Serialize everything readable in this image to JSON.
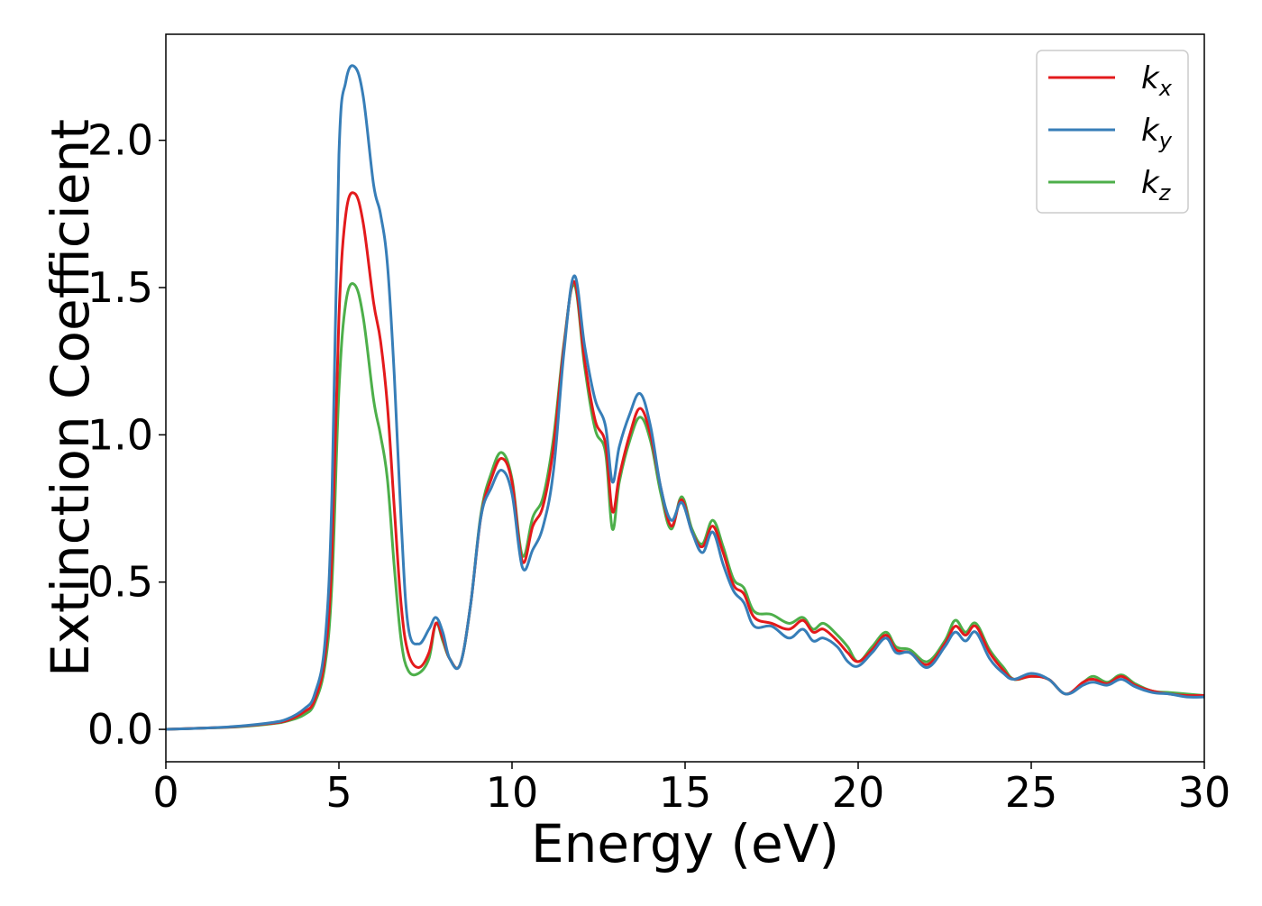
{
  "chart_data": {
    "type": "line",
    "title": "",
    "xlabel": "Energy (eV)",
    "ylabel": "Extinction Coefficient",
    "xlim": [
      0,
      30
    ],
    "ylim": [
      -0.11,
      2.36
    ],
    "grid": false,
    "legend_position": "top-right",
    "x_ticks": [
      0,
      5,
      10,
      15,
      20,
      25,
      30
    ],
    "x_tick_labels": [
      "0",
      "5",
      "10",
      "15",
      "20",
      "25",
      "30"
    ],
    "y_ticks": [
      0.0,
      0.5,
      1.0,
      1.5,
      2.0
    ],
    "y_tick_labels": [
      "0.0",
      "0.5",
      "1.0",
      "1.5",
      "2.0"
    ],
    "x": [
      0,
      1,
      2,
      3,
      3.5,
      4,
      4.3,
      4.6,
      4.8,
      5.0,
      5.2,
      5.45,
      5.7,
      6.0,
      6.2,
      6.4,
      6.6,
      6.8,
      7.0,
      7.3,
      7.6,
      7.8,
      8.0,
      8.2,
      8.5,
      8.8,
      9.1,
      9.4,
      9.7,
      10.0,
      10.3,
      10.6,
      10.9,
      11.2,
      11.5,
      11.8,
      12.1,
      12.4,
      12.7,
      12.9,
      13.1,
      13.4,
      13.7,
      14.0,
      14.3,
      14.6,
      14.9,
      15.2,
      15.5,
      15.8,
      16.1,
      16.4,
      16.7,
      17.0,
      17.5,
      18.0,
      18.4,
      18.7,
      19.0,
      19.4,
      19.7,
      20.0,
      20.4,
      20.8,
      21.1,
      21.5,
      22.0,
      22.5,
      22.8,
      23.1,
      23.4,
      23.8,
      24.2,
      24.5,
      25.0,
      25.5,
      26.0,
      26.5,
      26.8,
      27.2,
      27.6,
      28.0,
      28.5,
      29.0,
      29.5,
      30.0
    ],
    "series": [
      {
        "name": "k_x",
        "color": "#e31a1c",
        "values": [
          0.0,
          0.004,
          0.009,
          0.02,
          0.03,
          0.06,
          0.1,
          0.25,
          0.6,
          1.4,
          1.75,
          1.82,
          1.72,
          1.45,
          1.32,
          1.1,
          0.75,
          0.42,
          0.26,
          0.21,
          0.26,
          0.36,
          0.31,
          0.24,
          0.22,
          0.42,
          0.72,
          0.85,
          0.92,
          0.84,
          0.57,
          0.69,
          0.76,
          0.96,
          1.3,
          1.52,
          1.25,
          1.05,
          0.97,
          0.74,
          0.86,
          1.0,
          1.09,
          1.0,
          0.82,
          0.69,
          0.78,
          0.67,
          0.62,
          0.69,
          0.6,
          0.49,
          0.46,
          0.38,
          0.36,
          0.34,
          0.37,
          0.33,
          0.34,
          0.3,
          0.26,
          0.23,
          0.27,
          0.32,
          0.27,
          0.26,
          0.22,
          0.29,
          0.35,
          0.32,
          0.35,
          0.26,
          0.2,
          0.17,
          0.18,
          0.17,
          0.12,
          0.16,
          0.17,
          0.155,
          0.18,
          0.15,
          0.13,
          0.12,
          0.115,
          0.115
        ]
      },
      {
        "name": "k_y",
        "color": "#377eb8",
        "values": [
          0.0,
          0.004,
          0.01,
          0.022,
          0.035,
          0.07,
          0.12,
          0.3,
          0.8,
          1.95,
          2.2,
          2.25,
          2.15,
          1.85,
          1.75,
          1.58,
          1.2,
          0.7,
          0.35,
          0.29,
          0.34,
          0.38,
          0.33,
          0.24,
          0.22,
          0.42,
          0.72,
          0.82,
          0.88,
          0.8,
          0.55,
          0.61,
          0.69,
          0.88,
          1.28,
          1.54,
          1.3,
          1.12,
          1.03,
          0.84,
          0.96,
          1.07,
          1.14,
          1.03,
          0.82,
          0.71,
          0.77,
          0.67,
          0.6,
          0.67,
          0.56,
          0.47,
          0.43,
          0.35,
          0.35,
          0.31,
          0.34,
          0.3,
          0.31,
          0.28,
          0.23,
          0.215,
          0.26,
          0.31,
          0.26,
          0.26,
          0.21,
          0.28,
          0.33,
          0.3,
          0.33,
          0.24,
          0.19,
          0.17,
          0.19,
          0.17,
          0.12,
          0.15,
          0.16,
          0.15,
          0.17,
          0.145,
          0.125,
          0.12,
          0.11,
          0.11
        ]
      },
      {
        "name": "k_z",
        "color": "#4daf4a",
        "values": [
          0.0,
          0.004,
          0.008,
          0.018,
          0.028,
          0.05,
          0.09,
          0.22,
          0.5,
          1.15,
          1.45,
          1.51,
          1.4,
          1.12,
          1.0,
          0.85,
          0.55,
          0.3,
          0.2,
          0.19,
          0.24,
          0.36,
          0.3,
          0.24,
          0.22,
          0.42,
          0.73,
          0.87,
          0.94,
          0.85,
          0.59,
          0.72,
          0.79,
          0.99,
          1.31,
          1.51,
          1.23,
          1.02,
          0.94,
          0.68,
          0.84,
          0.98,
          1.06,
          0.98,
          0.8,
          0.68,
          0.79,
          0.68,
          0.63,
          0.71,
          0.62,
          0.51,
          0.48,
          0.4,
          0.39,
          0.36,
          0.38,
          0.34,
          0.36,
          0.32,
          0.28,
          0.23,
          0.28,
          0.33,
          0.28,
          0.27,
          0.23,
          0.3,
          0.37,
          0.33,
          0.36,
          0.27,
          0.21,
          0.17,
          0.18,
          0.17,
          0.12,
          0.16,
          0.18,
          0.16,
          0.185,
          0.155,
          0.13,
          0.125,
          0.12,
          0.115
        ]
      }
    ],
    "legend": [
      {
        "base": "k",
        "sub": "x",
        "color": "#e31a1c"
      },
      {
        "base": "k",
        "sub": "y",
        "color": "#377eb8"
      },
      {
        "base": "k",
        "sub": "z",
        "color": "#4daf4a"
      }
    ]
  }
}
